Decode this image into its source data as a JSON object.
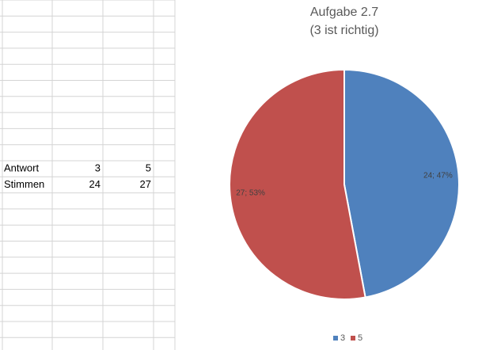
{
  "table": {
    "rows": [
      [
        "Antwort",
        3,
        5
      ],
      [
        "Stimmen",
        24,
        27
      ]
    ]
  },
  "chart_data": {
    "type": "pie",
    "title": [
      "Aufgabe 2.7",
      "(3 ist richtig)"
    ],
    "categories": [
      "3",
      "5"
    ],
    "values": [
      24,
      27
    ],
    "value_labels": [
      "24; 47%",
      "27; 53%"
    ],
    "colors": [
      "#4f81bd",
      "#c0504d"
    ],
    "legend": "bottom"
  }
}
